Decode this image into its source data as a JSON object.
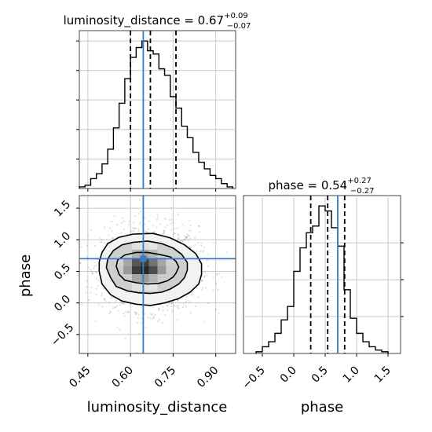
{
  "chart_data": [
    {
      "type": "histogram",
      "panel": "luminosity_distance-marginal",
      "title": {
        "param": "luminosity_distance",
        "median": "0.67",
        "plus": "+0.09",
        "minus": "−0.07"
      },
      "x": {
        "range": [
          0.42,
          0.97
        ],
        "ticks": [
          0.45,
          0.6,
          0.75,
          0.9
        ]
      },
      "bins": [
        [
          0.42,
          0.44,
          1
        ],
        [
          0.44,
          0.46,
          2
        ],
        [
          0.46,
          0.48,
          6
        ],
        [
          0.48,
          0.5,
          9
        ],
        [
          0.5,
          0.52,
          15
        ],
        [
          0.52,
          0.54,
          24
        ],
        [
          0.54,
          0.56,
          37
        ],
        [
          0.56,
          0.58,
          52
        ],
        [
          0.58,
          0.6,
          67
        ],
        [
          0.6,
          0.62,
          80
        ],
        [
          0.62,
          0.64,
          86
        ],
        [
          0.64,
          0.66,
          90
        ],
        [
          0.66,
          0.68,
          84
        ],
        [
          0.68,
          0.7,
          82
        ],
        [
          0.7,
          0.72,
          73
        ],
        [
          0.72,
          0.74,
          69
        ],
        [
          0.74,
          0.76,
          56
        ],
        [
          0.76,
          0.78,
          49
        ],
        [
          0.78,
          0.8,
          38
        ],
        [
          0.8,
          0.82,
          31
        ],
        [
          0.82,
          0.84,
          22
        ],
        [
          0.84,
          0.86,
          16
        ],
        [
          0.86,
          0.88,
          12
        ],
        [
          0.88,
          0.9,
          8
        ],
        [
          0.9,
          0.92,
          6
        ],
        [
          0.92,
          0.94,
          3
        ],
        [
          0.94,
          0.96,
          1
        ]
      ],
      "quantile_lines": [
        0.6,
        0.67,
        0.76
      ],
      "truth": 0.645,
      "grid": true
    },
    {
      "type": "histogram",
      "panel": "phase-marginal",
      "title": {
        "param": "phase",
        "median": "0.54",
        "plus": "+0.27",
        "minus": "−0.27"
      },
      "x": {
        "range": [
          -0.8,
          1.7
        ],
        "ticks": [
          -0.5,
          0.0,
          0.5,
          1.0,
          1.5
        ],
        "ticklabels": [
          "−0.5",
          "0.0",
          "0.5",
          "1.0",
          "1.5"
        ]
      },
      "bins": [
        [
          -0.6,
          -0.5,
          1
        ],
        [
          -0.5,
          -0.4,
          4
        ],
        [
          -0.4,
          -0.3,
          7
        ],
        [
          -0.3,
          -0.2,
          12
        ],
        [
          -0.2,
          -0.1,
          20
        ],
        [
          -0.1,
          0.0,
          28
        ],
        [
          0.0,
          0.1,
          49
        ],
        [
          0.1,
          0.2,
          63
        ],
        [
          0.2,
          0.3,
          72
        ],
        [
          0.3,
          0.4,
          76
        ],
        [
          0.4,
          0.5,
          88
        ],
        [
          0.5,
          0.6,
          85
        ],
        [
          0.6,
          0.7,
          75
        ],
        [
          0.7,
          0.8,
          64
        ],
        [
          0.8,
          0.9,
          38
        ],
        [
          0.9,
          1.0,
          21
        ],
        [
          1.0,
          1.1,
          12
        ],
        [
          1.1,
          1.2,
          7
        ],
        [
          1.2,
          1.3,
          4
        ],
        [
          1.3,
          1.4,
          2
        ],
        [
          1.4,
          1.5,
          1
        ]
      ],
      "quantile_lines": [
        0.27,
        0.54,
        0.81
      ],
      "truth": 0.7,
      "grid": true
    },
    {
      "type": "heatmap",
      "panel": "luminosity_distance-vs-phase",
      "xlabel": "luminosity_distance",
      "ylabel": "phase",
      "x": {
        "range": [
          0.42,
          0.97
        ],
        "ticks": [
          0.45,
          0.6,
          0.75,
          0.9
        ],
        "ticklabels": [
          "0.45",
          "0.60",
          "0.75",
          "0.90"
        ]
      },
      "y": {
        "range": [
          -0.8,
          1.7
        ],
        "ticks": [
          -0.5,
          0.0,
          0.5,
          1.0,
          1.5
        ],
        "ticklabels": [
          "−0.5",
          "0.0",
          "0.5",
          "1.0",
          "1.5"
        ]
      },
      "truth": {
        "x": 0.645,
        "y": 0.7
      },
      "grid": true,
      "density_cells": [
        [
          0.62,
          0.52,
          0.76
        ],
        [
          0.62,
          0.65,
          0.66
        ],
        [
          0.65,
          0.52,
          0.85
        ],
        [
          0.65,
          0.65,
          0.76
        ],
        [
          0.68,
          0.52,
          0.7
        ],
        [
          0.68,
          0.65,
          0.55
        ],
        [
          0.59,
          0.52,
          0.4
        ],
        [
          0.71,
          0.52,
          0.4
        ],
        [
          0.59,
          0.65,
          0.35
        ],
        [
          0.71,
          0.65,
          0.35
        ],
        [
          0.65,
          0.39,
          0.4
        ],
        [
          0.65,
          0.78,
          0.35
        ],
        [
          0.62,
          0.39,
          0.35
        ],
        [
          0.62,
          0.78,
          0.3
        ],
        [
          0.68,
          0.39,
          0.3
        ],
        [
          0.68,
          0.78,
          0.28
        ],
        [
          0.56,
          0.52,
          0.2
        ],
        [
          0.74,
          0.52,
          0.2
        ],
        [
          0.56,
          0.65,
          0.18
        ],
        [
          0.74,
          0.65,
          0.18
        ],
        [
          0.59,
          0.39,
          0.2
        ],
        [
          0.71,
          0.39,
          0.2
        ],
        [
          0.59,
          0.78,
          0.18
        ],
        [
          0.71,
          0.78,
          0.18
        ],
        [
          0.62,
          0.91,
          0.12
        ],
        [
          0.65,
          0.91,
          0.12
        ],
        [
          0.68,
          0.91,
          0.1
        ],
        [
          0.62,
          0.26,
          0.12
        ],
        [
          0.65,
          0.26,
          0.12
        ],
        [
          0.68,
          0.26,
          0.1
        ]
      ],
      "contours": [
        [
          [
            0.56,
            0.45
          ],
          [
            0.58,
            0.36
          ],
          [
            0.62,
            0.32
          ],
          [
            0.66,
            0.3
          ],
          [
            0.7,
            0.31
          ],
          [
            0.73,
            0.35
          ],
          [
            0.75,
            0.41
          ],
          [
            0.76,
            0.47
          ],
          [
            0.77,
            0.57
          ],
          [
            0.76,
            0.66
          ],
          [
            0.74,
            0.73
          ],
          [
            0.7,
            0.77
          ],
          [
            0.66,
            0.8
          ],
          [
            0.62,
            0.8
          ],
          [
            0.58,
            0.76
          ],
          [
            0.555,
            0.68
          ],
          [
            0.55,
            0.58
          ]
        ],
        [
          [
            0.53,
            0.4
          ],
          [
            0.55,
            0.26
          ],
          [
            0.59,
            0.19
          ],
          [
            0.63,
            0.16
          ],
          [
            0.67,
            0.15
          ],
          [
            0.71,
            0.17
          ],
          [
            0.74,
            0.22
          ],
          [
            0.77,
            0.3
          ],
          [
            0.79,
            0.4
          ],
          [
            0.8,
            0.52
          ],
          [
            0.8,
            0.64
          ],
          [
            0.78,
            0.77
          ],
          [
            0.75,
            0.87
          ],
          [
            0.71,
            0.94
          ],
          [
            0.66,
            0.98
          ],
          [
            0.61,
            0.96
          ],
          [
            0.57,
            0.92
          ],
          [
            0.54,
            0.83
          ],
          [
            0.52,
            0.7
          ],
          [
            0.515,
            0.56
          ]
        ],
        [
          [
            0.49,
            0.5
          ],
          [
            0.5,
            0.3
          ],
          [
            0.53,
            0.13
          ],
          [
            0.57,
            0.03
          ],
          [
            0.62,
            -0.02
          ],
          [
            0.67,
            -0.04
          ],
          [
            0.72,
            0.0
          ],
          [
            0.77,
            0.07
          ],
          [
            0.81,
            0.17
          ],
          [
            0.84,
            0.3
          ],
          [
            0.85,
            0.45
          ],
          [
            0.85,
            0.62
          ],
          [
            0.83,
            0.78
          ],
          [
            0.79,
            0.92
          ],
          [
            0.74,
            1.03
          ],
          [
            0.68,
            1.1
          ],
          [
            0.61,
            1.09
          ],
          [
            0.56,
            1.04
          ],
          [
            0.52,
            0.94
          ],
          [
            0.5,
            0.8
          ],
          [
            0.49,
            0.65
          ]
        ]
      ]
    }
  ]
}
